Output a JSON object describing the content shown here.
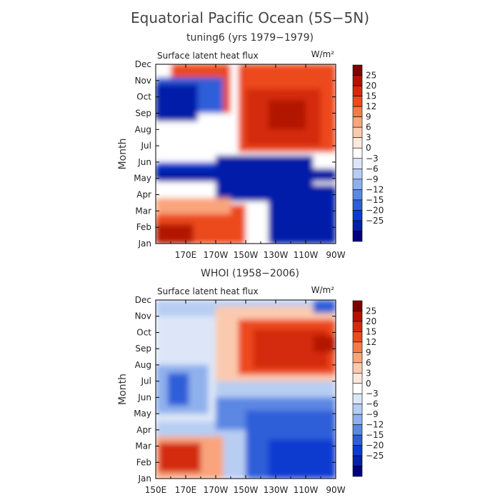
{
  "figure": {
    "title": "Equatorial Pacific Ocean (5S−5N)"
  },
  "colorbar": {
    "levels": [
      "25",
      "20",
      "15",
      "12",
      "9",
      "6",
      "3",
      "0",
      "−3",
      "−6",
      "−9",
      "−12",
      "−15",
      "−20",
      "−25"
    ],
    "colors": [
      "#7f0000",
      "#b31200",
      "#d42a0a",
      "#ec4a1a",
      "#f57a4a",
      "#f9a47c",
      "#fbcaae",
      "#fde8dc",
      "#ffffff",
      "#dce6f8",
      "#b7cdf2",
      "#8fb0ec",
      "#5b88e3",
      "#2e5ed8",
      "#0c3bd0",
      "#041fa8",
      "#00007f"
    ]
  },
  "chart_data": [
    {
      "type": "heatmap",
      "title": "tuning6 (yrs 1979−1979)",
      "variable": "Surface latent heat flux",
      "units": "W/m²",
      "ylabel": "Month",
      "y_ticks": [
        "Jan",
        "Feb",
        "Mar",
        "Apr",
        "May",
        "Jun",
        "Jul",
        "Aug",
        "Sep",
        "Oct",
        "Nov",
        "Dec"
      ],
      "x_ticks": [
        "170E",
        "170W",
        "150W",
        "130W",
        "110W",
        "90W"
      ],
      "x_range": [
        150,
        270
      ],
      "x_tick_values": [
        170,
        190,
        210,
        230,
        250,
        270
      ],
      "regions": [
        {
          "x": [
            150,
            270
          ],
          "y": [
            0,
            11
          ],
          "v": 0
        },
        {
          "x": [
            160,
            200
          ],
          "y": [
            8,
            11
          ],
          "v": 15
        },
        {
          "x": [
            205,
            270
          ],
          "y": [
            5.6,
            11
          ],
          "v": 15
        },
        {
          "x": [
            210,
            260
          ],
          "y": [
            6,
            9.5
          ],
          "v": 20
        },
        {
          "x": [
            225,
            250
          ],
          "y": [
            7,
            8.8
          ],
          "v": 25
        },
        {
          "x": [
            150,
            195
          ],
          "y": [
            8,
            10.2
          ],
          "v": -15
        },
        {
          "x": [
            150,
            178
          ],
          "y": [
            7.5,
            9.8
          ],
          "v": -25
        },
        {
          "x": [
            150,
            210
          ],
          "y": [
            4.2,
            5
          ],
          "v": -20
        },
        {
          "x": [
            190,
            255
          ],
          "y": [
            2.6,
            5.4
          ],
          "v": -25
        },
        {
          "x": [
            150,
            270
          ],
          "y": [
            3.8,
            4.6
          ],
          "v": -25
        },
        {
          "x": [
            225,
            270
          ],
          "y": [
            0,
            3.6
          ],
          "v": -25
        },
        {
          "x": [
            150,
            210
          ],
          "y": [
            0,
            2.4
          ],
          "v": 15
        },
        {
          "x": [
            150,
            175
          ],
          "y": [
            0,
            1.2
          ],
          "v": 25
        },
        {
          "x": [
            150,
            200
          ],
          "y": [
            1.8,
            2.8
          ],
          "v": 9
        }
      ]
    },
    {
      "type": "heatmap",
      "title": "WHOI (1958−2006)",
      "variable": "Surface latent heat flux",
      "units": "W/m²",
      "ylabel": "Month",
      "y_ticks": [
        "Jan",
        "Feb",
        "Mar",
        "Apr",
        "May",
        "Jun",
        "Jul",
        "Aug",
        "Sep",
        "Oct",
        "Nov",
        "Dec"
      ],
      "x_ticks": [
        "150E",
        "170E",
        "170W",
        "150W",
        "130W",
        "110W",
        "90W"
      ],
      "x_range": [
        150,
        270
      ],
      "x_tick_values": [
        150,
        170,
        190,
        210,
        230,
        250,
        270
      ],
      "regions": [
        {
          "x": [
            150,
            270
          ],
          "y": [
            0,
            11
          ],
          "v": -6
        },
        {
          "x": [
            150,
            190
          ],
          "y": [
            3.5,
            10
          ],
          "v": -3
        },
        {
          "x": [
            150,
            185
          ],
          "y": [
            4,
            7
          ],
          "v": -9
        },
        {
          "x": [
            158,
            172
          ],
          "y": [
            4.5,
            6.5
          ],
          "v": -15
        },
        {
          "x": [
            190,
            270
          ],
          "y": [
            6,
            10.6
          ],
          "v": 6
        },
        {
          "x": [
            205,
            270
          ],
          "y": [
            6.4,
            9.8
          ],
          "v": 15
        },
        {
          "x": [
            215,
            265
          ],
          "y": [
            6.8,
            9.2
          ],
          "v": 20
        },
        {
          "x": [
            255,
            270
          ],
          "y": [
            7.8,
            8.8
          ],
          "v": 25
        },
        {
          "x": [
            190,
            270
          ],
          "y": [
            3,
            5
          ],
          "v": -12
        },
        {
          "x": [
            210,
            270
          ],
          "y": [
            0,
            4.2
          ],
          "v": -15
        },
        {
          "x": [
            225,
            270
          ],
          "y": [
            0,
            2.4
          ],
          "v": -20
        },
        {
          "x": [
            255,
            270
          ],
          "y": [
            10.2,
            11
          ],
          "v": -15
        },
        {
          "x": [
            150,
            195
          ],
          "y": [
            0,
            2.6
          ],
          "v": 9
        },
        {
          "x": [
            152,
            180
          ],
          "y": [
            0.4,
            2.2
          ],
          "v": 20
        }
      ]
    }
  ]
}
